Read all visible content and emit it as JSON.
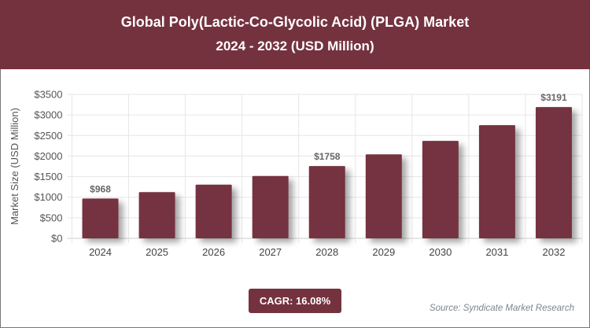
{
  "header": {
    "title": "Global Poly(Lactic-Co-Glycolic Acid) (PLGA) Market",
    "subtitle": "2024 - 2032 (USD Million)"
  },
  "cagr": "CAGR: 16.08%",
  "source": "Source: Syndicate Market Research",
  "colors": {
    "brand": "#74323f",
    "bar": "#74323f"
  },
  "chart_data": {
    "type": "bar",
    "title": "Global Poly(Lactic-Co-Glycolic Acid) (PLGA) Market",
    "ylabel": "Market Size (USD Million)",
    "xlabel": "",
    "categories": [
      "2024",
      "2025",
      "2026",
      "2027",
      "2028",
      "2029",
      "2030",
      "2031",
      "2032"
    ],
    "values": [
      968,
      1124,
      1305,
      1515,
      1758,
      2042,
      2370,
      2752,
      3191
    ],
    "data_labels": {
      "0": "$968",
      "4": "$1758",
      "8": "$3191"
    },
    "ylim": [
      0,
      3500
    ],
    "yticks": [
      "$0",
      "$500",
      "$1000",
      "$1500",
      "$2000",
      "$2500",
      "$3000",
      "$3500"
    ],
    "grid": true
  }
}
